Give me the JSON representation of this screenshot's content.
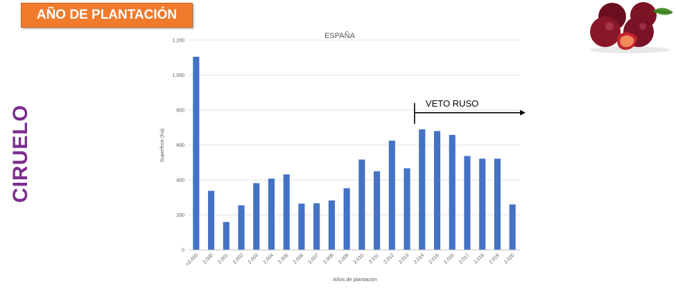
{
  "banner": {
    "title": "AÑO DE PLANTACIÓN"
  },
  "side_label": "CIRUELO",
  "icons": {
    "fruit": "plum-fruit-icon"
  },
  "colors": {
    "banner": "#f07b2c",
    "side_label": "#7b2d8e",
    "bars": "#4472c4"
  },
  "chart_data": {
    "type": "bar",
    "title": "ESPAÑA",
    "xlabel": "Años de plantación",
    "ylabel": "Superficie (ha)",
    "categories": [
      "<2.000",
      "2.000",
      "2.001",
      "2.002",
      "2.003",
      "2.004",
      "2.005",
      "2.006",
      "2.007",
      "2.008",
      "2.009",
      "2.010",
      "2.011",
      "2.012",
      "2.013",
      "2.014",
      "2.015",
      "2.016",
      "2.017",
      "2.018",
      "2.019",
      "2.020"
    ],
    "values": [
      1105,
      338,
      160,
      255,
      382,
      408,
      432,
      265,
      267,
      283,
      353,
      517,
      450,
      625,
      467,
      690,
      680,
      658,
      537,
      522,
      522,
      260
    ],
    "ylim": [
      0,
      1200
    ],
    "yticks": [
      {
        "value": 0,
        "label": "0"
      },
      {
        "value": 200,
        "label": "200"
      },
      {
        "value": 400,
        "label": "400"
      },
      {
        "value": 600,
        "label": "600"
      },
      {
        "value": 800,
        "label": "800"
      },
      {
        "value": 1000,
        "label": "1.000"
      },
      {
        "value": 1200,
        "label": "1.200"
      }
    ],
    "grid": true,
    "annotation": {
      "text": "VETO RUSO",
      "from_category": "2.014",
      "value": 785
    }
  }
}
